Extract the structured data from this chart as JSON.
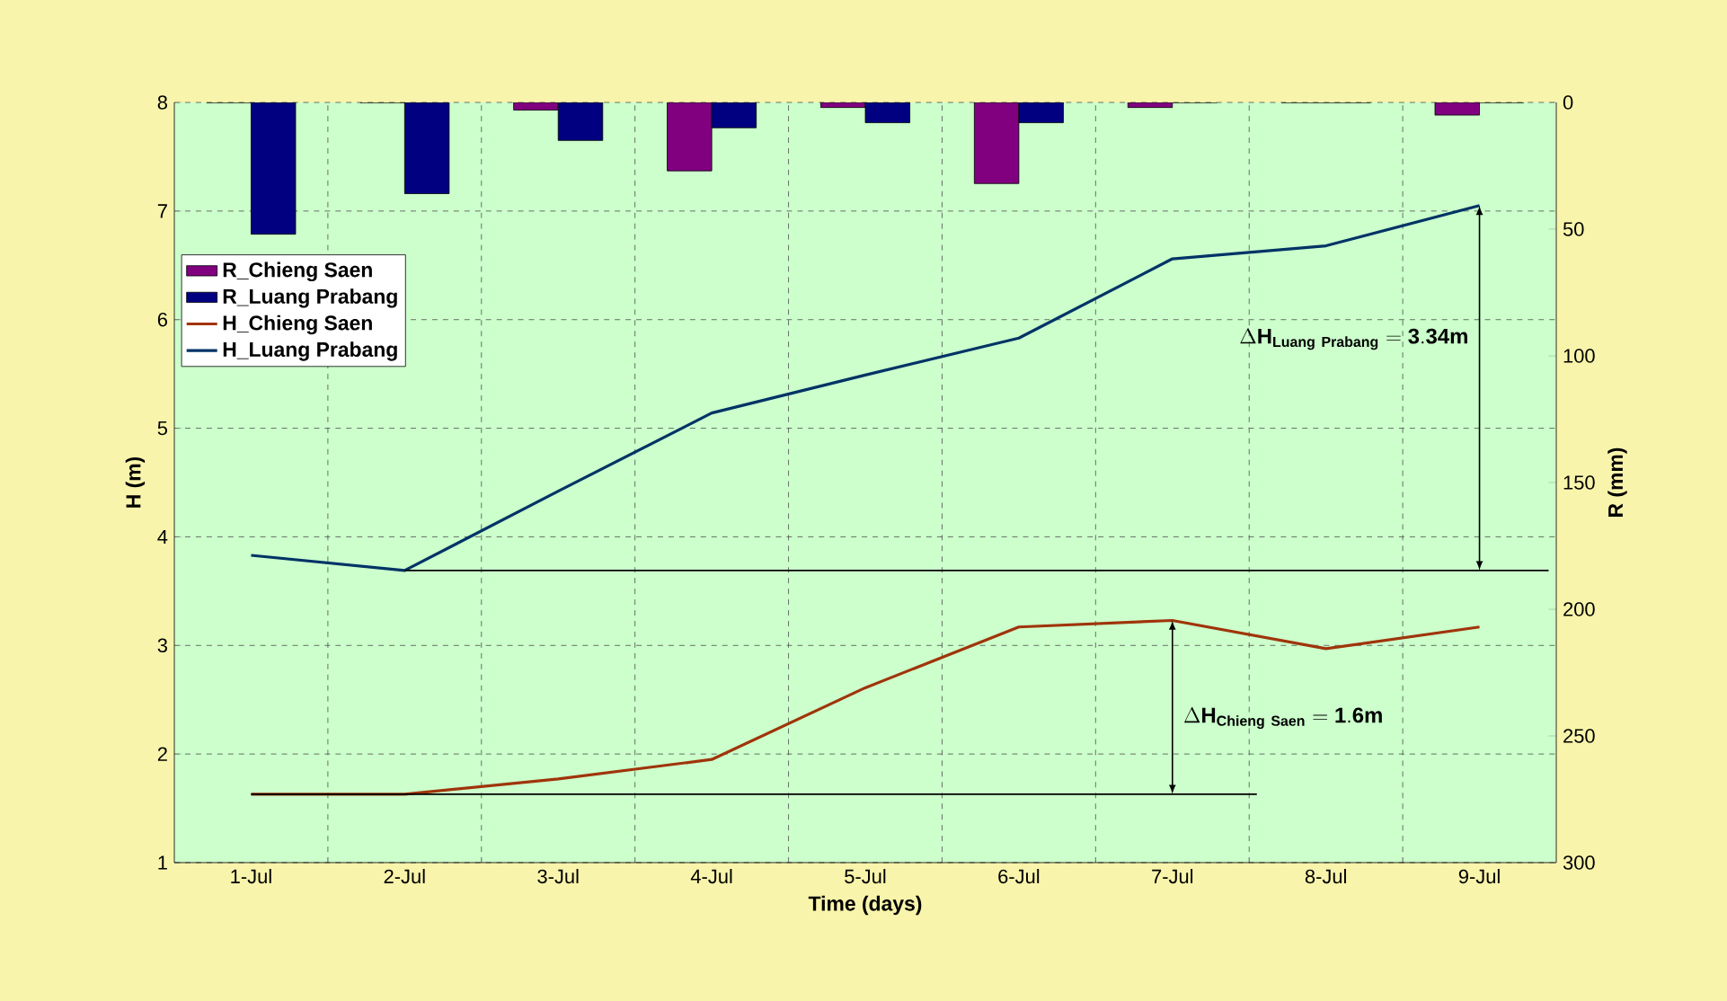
{
  "chart_data": {
    "type": "bar",
    "xlabel": "Time (days)",
    "ylabel": "H (m)",
    "y2label": "R (mm)",
    "categories": [
      "1-Jul",
      "2-Jul",
      "3-Jul",
      "4-Jul",
      "5-Jul",
      "6-Jul",
      "7-Jul",
      "8-Jul",
      "9-Jul"
    ],
    "series": [
      {
        "name": "R_Chieng Saen",
        "axis": "y2",
        "color": "#800080",
        "values": [
          0,
          0,
          3,
          27,
          2,
          32,
          2,
          0,
          5
        ]
      },
      {
        "name": "R_Luang Prabang",
        "axis": "y2",
        "color": "#000080",
        "values": [
          52,
          36,
          15,
          10,
          8,
          8,
          0,
          0,
          0
        ]
      },
      {
        "name": "H_Chieng Saen",
        "type": "line",
        "color": "#a0340a",
        "values": [
          1.63,
          1.63,
          1.77,
          1.95,
          2.61,
          3.17,
          3.23,
          2.97,
          3.17
        ]
      },
      {
        "name": "H_Luang Prabang",
        "type": "line",
        "color": "#003366",
        "values": [
          3.83,
          3.69,
          4.42,
          5.14,
          5.49,
          5.83,
          6.56,
          6.68,
          7.05
        ]
      }
    ],
    "ylim": [
      1,
      8
    ],
    "yticks": [
      1,
      2,
      3,
      4,
      5,
      6,
      7,
      8
    ],
    "y2lim": [
      300,
      0
    ],
    "y2ticks": [
      0,
      50,
      100,
      150,
      200,
      250,
      300
    ],
    "ref_lines": [
      {
        "axis": "y",
        "value": 3.69,
        "color": "#000000"
      },
      {
        "axis": "y",
        "value": 1.63,
        "color": "#000000"
      }
    ],
    "grid": true,
    "legend": "left",
    "marker": "none",
    "line_style": "solid",
    "annotations": [
      "\\Delta\\mathbf{H_{Luang\\ Prabang} = 3.34m}",
      "\\Delta\\mathbf{H_{Chieng\\ Saen} = 1.6m}"
    ]
  }
}
